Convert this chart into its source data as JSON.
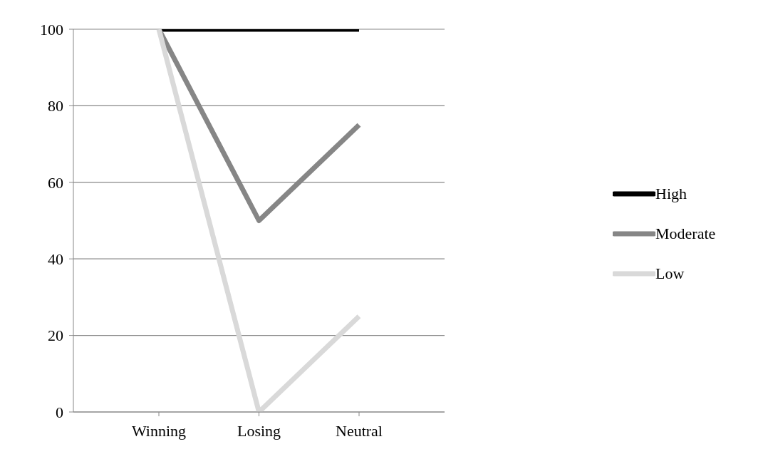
{
  "chart_data": {
    "type": "line",
    "categories": [
      "Winning",
      "Losing",
      "Neutral"
    ],
    "series": [
      {
        "name": "High",
        "color": "#000000",
        "values": [
          100,
          100,
          100
        ]
      },
      {
        "name": "Moderate",
        "color": "#868686",
        "values": [
          100,
          50,
          75
        ]
      },
      {
        "name": "Low",
        "color": "#d9d9d9",
        "values": [
          100,
          0,
          25
        ]
      }
    ],
    "ylim": [
      0,
      100
    ],
    "yticks": [
      0,
      20,
      40,
      60,
      80,
      100
    ],
    "grid": "y",
    "legend": "right",
    "marker": "none",
    "line_style": "solid"
  }
}
